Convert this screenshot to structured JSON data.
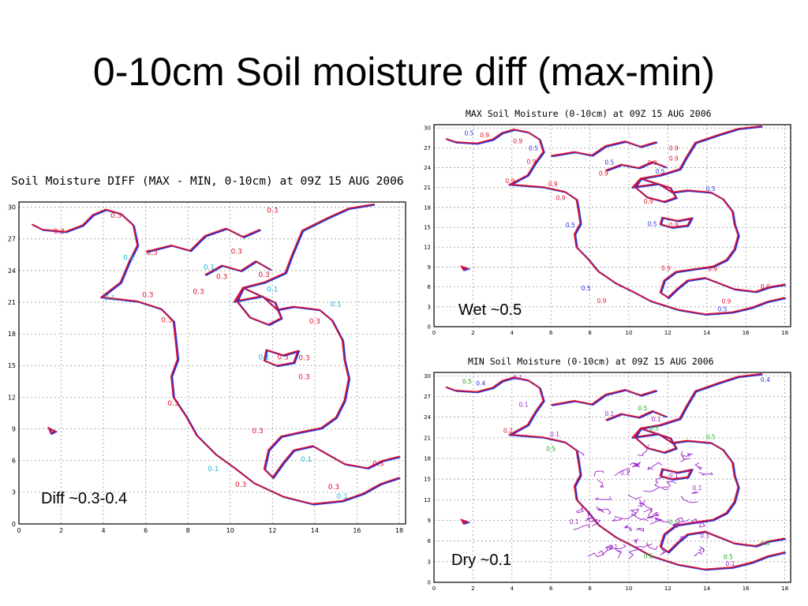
{
  "slide": {
    "title": "0-10cm Soil moisture diff (max-min)"
  },
  "colors": {
    "coast_red": "#e0102a",
    "coast_blue": "#2233dd",
    "cyan": "#19b6d6",
    "green": "#1faa1f",
    "magenta": "#9a22c8",
    "grid": "#9a9a9a"
  },
  "panels": {
    "diff": {
      "header": "Soil Moisture DIFF (MAX - MIN, 0-10cm) at 09Z 15 AUG 2006",
      "caption": "Diff ~0.3-0.4",
      "labels": [
        {
          "text": "0.3",
          "x": 1.9,
          "y": 27.5
        },
        {
          "text": "0.3",
          "x": 4.6,
          "y": 29.0
        },
        {
          "text": "0.3",
          "x": 6.3,
          "y": 25.5
        },
        {
          "text": "0.1",
          "x": 5.2,
          "y": 25.0
        },
        {
          "text": "0.1",
          "x": 4.3,
          "y": 21.2
        },
        {
          "text": "0.3",
          "x": 6.1,
          "y": 21.5
        },
        {
          "text": "0.3",
          "x": 7.0,
          "y": 19.1
        },
        {
          "text": "0.3",
          "x": 8.5,
          "y": 21.8
        },
        {
          "text": "0.3",
          "x": 9.6,
          "y": 23.2
        },
        {
          "text": "0.1",
          "x": 9.0,
          "y": 24.1
        },
        {
          "text": "0.3",
          "x": 10.3,
          "y": 25.6
        },
        {
          "text": "0.3",
          "x": 11.6,
          "y": 23.4
        },
        {
          "text": "0.1",
          "x": 12.0,
          "y": 22.0
        },
        {
          "text": "0.1",
          "x": 15.0,
          "y": 20.6
        },
        {
          "text": "0.3",
          "x": 14.0,
          "y": 19.0
        },
        {
          "text": "0.1",
          "x": 11.6,
          "y": 15.6
        },
        {
          "text": "0.3",
          "x": 12.5,
          "y": 15.6
        },
        {
          "text": "0.3",
          "x": 13.5,
          "y": 15.5
        },
        {
          "text": "0.3",
          "x": 13.5,
          "y": 13.7
        },
        {
          "text": "0.3",
          "x": 7.3,
          "y": 11.2
        },
        {
          "text": "0.3",
          "x": 11.3,
          "y": 8.6
        },
        {
          "text": "0.1",
          "x": 13.6,
          "y": 5.9
        },
        {
          "text": "0.1",
          "x": 9.2,
          "y": 5.0
        },
        {
          "text": "0.3",
          "x": 10.5,
          "y": 3.5
        },
        {
          "text": "0.3",
          "x": 14.9,
          "y": 3.3
        },
        {
          "text": "0.1",
          "x": 15.3,
          "y": 2.4
        },
        {
          "text": "0.3",
          "x": 17.0,
          "y": 5.5
        },
        {
          "text": "0.3",
          "x": 12.0,
          "y": 29.5
        }
      ]
    },
    "max": {
      "header": "MAX Soil Moisture (0-10cm) at 09Z 15 AUG 2006",
      "caption": "Wet ~0.5",
      "labels": [
        {
          "text": "0.5",
          "x": 1.8,
          "y": 28.9
        },
        {
          "text": "0.9",
          "x": 2.6,
          "y": 28.6
        },
        {
          "text": "0.9",
          "x": 4.3,
          "y": 27.7
        },
        {
          "text": "0.5",
          "x": 5.1,
          "y": 26.6
        },
        {
          "text": "0.9",
          "x": 5.0,
          "y": 24.6
        },
        {
          "text": "0.9",
          "x": 3.9,
          "y": 21.7
        },
        {
          "text": "0.9",
          "x": 6.1,
          "y": 21.2
        },
        {
          "text": "0.9",
          "x": 6.5,
          "y": 19.1
        },
        {
          "text": "0.9",
          "x": 8.7,
          "y": 22.8
        },
        {
          "text": "0.5",
          "x": 9.0,
          "y": 24.5
        },
        {
          "text": "0.9",
          "x": 11.2,
          "y": 24.4
        },
        {
          "text": "0.5",
          "x": 11.6,
          "y": 23.1
        },
        {
          "text": "0.9",
          "x": 12.3,
          "y": 25.1
        },
        {
          "text": "0.5",
          "x": 14.2,
          "y": 20.5
        },
        {
          "text": "0.9",
          "x": 11.0,
          "y": 18.6
        },
        {
          "text": "0.5",
          "x": 7.0,
          "y": 15.0
        },
        {
          "text": "0.5",
          "x": 11.2,
          "y": 15.2
        },
        {
          "text": "0.9",
          "x": 12.3,
          "y": 15.0
        },
        {
          "text": "0.5",
          "x": 7.8,
          "y": 5.5
        },
        {
          "text": "0.9",
          "x": 11.9,
          "y": 8.5
        },
        {
          "text": "0.9",
          "x": 14.3,
          "y": 8.4
        },
        {
          "text": "0.9",
          "x": 8.6,
          "y": 3.6
        },
        {
          "text": "0.9",
          "x": 15.0,
          "y": 3.5
        },
        {
          "text": "0.5",
          "x": 14.8,
          "y": 2.3
        },
        {
          "text": "0.9",
          "x": 17.0,
          "y": 5.7
        },
        {
          "text": "0.9",
          "x": 12.3,
          "y": 26.6
        }
      ]
    },
    "min": {
      "header": "MIN Soil Moisture (0-10cm) at 09Z 15 AUG 2006",
      "caption": "Dry ~0.1",
      "labels": [
        {
          "text": "0.5",
          "x": 1.7,
          "y": 28.9
        },
        {
          "text": "0.4",
          "x": 2.4,
          "y": 28.6
        },
        {
          "text": "0.1",
          "x": 4.3,
          "y": 29.4
        },
        {
          "text": "0.1",
          "x": 4.6,
          "y": 25.5
        },
        {
          "text": "0.2",
          "x": 3.8,
          "y": 21.7
        },
        {
          "text": "0.1",
          "x": 6.2,
          "y": 21.2
        },
        {
          "text": "0.5",
          "x": 6.0,
          "y": 19.1
        },
        {
          "text": "0.1",
          "x": 9.0,
          "y": 24.2
        },
        {
          "text": "0.5",
          "x": 10.7,
          "y": 25.0
        },
        {
          "text": "0.1",
          "x": 11.4,
          "y": 23.4
        },
        {
          "text": "0.5",
          "x": 11.3,
          "y": 22.1
        },
        {
          "text": "0.5",
          "x": 14.2,
          "y": 20.8
        },
        {
          "text": "0.1",
          "x": 9.8,
          "y": 15.6
        },
        {
          "text": "0.1",
          "x": 12.3,
          "y": 15.2
        },
        {
          "text": "0.1",
          "x": 13.5,
          "y": 13.4
        },
        {
          "text": "0.1",
          "x": 7.2,
          "y": 8.5
        },
        {
          "text": "0.5",
          "x": 12.3,
          "y": 8.4
        },
        {
          "text": "0.1",
          "x": 13.9,
          "y": 6.5
        },
        {
          "text": "0.1",
          "x": 9.2,
          "y": 4.8
        },
        {
          "text": "0.5",
          "x": 11.0,
          "y": 3.5
        },
        {
          "text": "0.5",
          "x": 15.1,
          "y": 3.4
        },
        {
          "text": "0.1",
          "x": 15.2,
          "y": 2.4
        },
        {
          "text": "0.5",
          "x": 17.0,
          "y": 5.4
        },
        {
          "text": "0.4",
          "x": 17.0,
          "y": 29.1
        }
      ]
    }
  },
  "axes": {
    "x_ticks": [
      "0",
      "2",
      "4",
      "6",
      "8",
      "10",
      "12",
      "14",
      "16",
      "18"
    ],
    "y_ticks": [
      "0",
      "3",
      "6",
      "9",
      "12",
      "15",
      "18",
      "21",
      "24",
      "27",
      "30"
    ],
    "xlim": [
      0,
      18.3
    ],
    "ylim": [
      0,
      30.5
    ]
  },
  "outline": {
    "alaska_coast": [
      [
        0.6,
        28.4
      ],
      [
        1.1,
        27.9
      ],
      [
        2.2,
        27.7
      ],
      [
        3.0,
        28.3
      ],
      [
        3.5,
        29.3
      ],
      [
        4.1,
        29.8
      ],
      [
        4.8,
        29.4
      ],
      [
        5.4,
        28.3
      ]
    ],
    "western_coast": [
      [
        5.4,
        28.3
      ],
      [
        5.6,
        26.4
      ],
      [
        5.2,
        24.8
      ],
      [
        4.8,
        22.9
      ],
      [
        3.9,
        21.5
      ],
      [
        5.6,
        21.1
      ],
      [
        6.7,
        20.4
      ],
      [
        7.3,
        19.2
      ],
      [
        7.4,
        17.5
      ],
      [
        7.5,
        15.6
      ],
      [
        7.2,
        14.0
      ],
      [
        7.3,
        12.0
      ],
      [
        7.9,
        10.2
      ],
      [
        8.4,
        8.4
      ],
      [
        9.3,
        6.6
      ],
      [
        10.2,
        5.3
      ],
      [
        11.1,
        3.9
      ],
      [
        12.5,
        2.6
      ],
      [
        13.9,
        1.9
      ],
      [
        15.3,
        2.2
      ],
      [
        16.3,
        2.9
      ],
      [
        17.1,
        3.8
      ],
      [
        18.0,
        4.4
      ]
    ],
    "eastern_coast": [
      [
        18.0,
        6.4
      ],
      [
        17.2,
        6.0
      ],
      [
        16.5,
        5.3
      ],
      [
        15.4,
        5.7
      ],
      [
        14.6,
        6.6
      ],
      [
        13.9,
        7.4
      ],
      [
        13.0,
        7.0
      ],
      [
        12.5,
        5.8
      ],
      [
        12.0,
        4.4
      ],
      [
        11.6,
        5.2
      ],
      [
        11.8,
        7.0
      ],
      [
        12.4,
        8.3
      ],
      [
        13.3,
        8.7
      ],
      [
        14.3,
        9.1
      ],
      [
        15.0,
        10.1
      ],
      [
        15.4,
        11.7
      ],
      [
        15.6,
        13.8
      ],
      [
        15.4,
        15.5
      ],
      [
        15.3,
        17.4
      ],
      [
        14.8,
        19.3
      ],
      [
        14.2,
        20.3
      ],
      [
        13.0,
        20.6
      ],
      [
        12.2,
        20.3
      ],
      [
        11.5,
        21.6
      ],
      [
        10.2,
        21.1
      ],
      [
        10.6,
        22.4
      ],
      [
        11.6,
        22.9
      ],
      [
        12.6,
        23.8
      ],
      [
        12.9,
        25.4
      ],
      [
        13.4,
        27.8
      ],
      [
        14.6,
        29.0
      ],
      [
        15.6,
        29.9
      ],
      [
        16.8,
        30.3
      ]
    ],
    "hudson_bay": [
      [
        10.6,
        22.4
      ],
      [
        10.3,
        21.1
      ],
      [
        10.9,
        19.6
      ],
      [
        11.8,
        18.9
      ],
      [
        12.4,
        19.5
      ],
      [
        12.1,
        21.0
      ]
    ],
    "great_lakes": [
      [
        11.7,
        16.5
      ],
      [
        12.5,
        16.0
      ],
      [
        13.2,
        16.4
      ],
      [
        13.0,
        15.3
      ],
      [
        12.2,
        15.0
      ],
      [
        11.6,
        15.5
      ]
    ],
    "archipelago": [
      [
        6.0,
        25.8
      ],
      [
        7.2,
        26.4
      ],
      [
        8.1,
        25.9
      ],
      [
        8.8,
        27.3
      ],
      [
        9.8,
        28.0
      ],
      [
        10.6,
        27.2
      ],
      [
        11.4,
        27.9
      ]
    ],
    "arctic_island": [
      [
        8.8,
        23.6
      ],
      [
        9.6,
        24.5
      ],
      [
        10.5,
        24.0
      ],
      [
        11.2,
        24.9
      ],
      [
        11.9,
        24.1
      ]
    ],
    "hawaii": [
      [
        1.4,
        9.1
      ],
      [
        1.7,
        8.8
      ],
      [
        1.5,
        8.6
      ]
    ]
  }
}
